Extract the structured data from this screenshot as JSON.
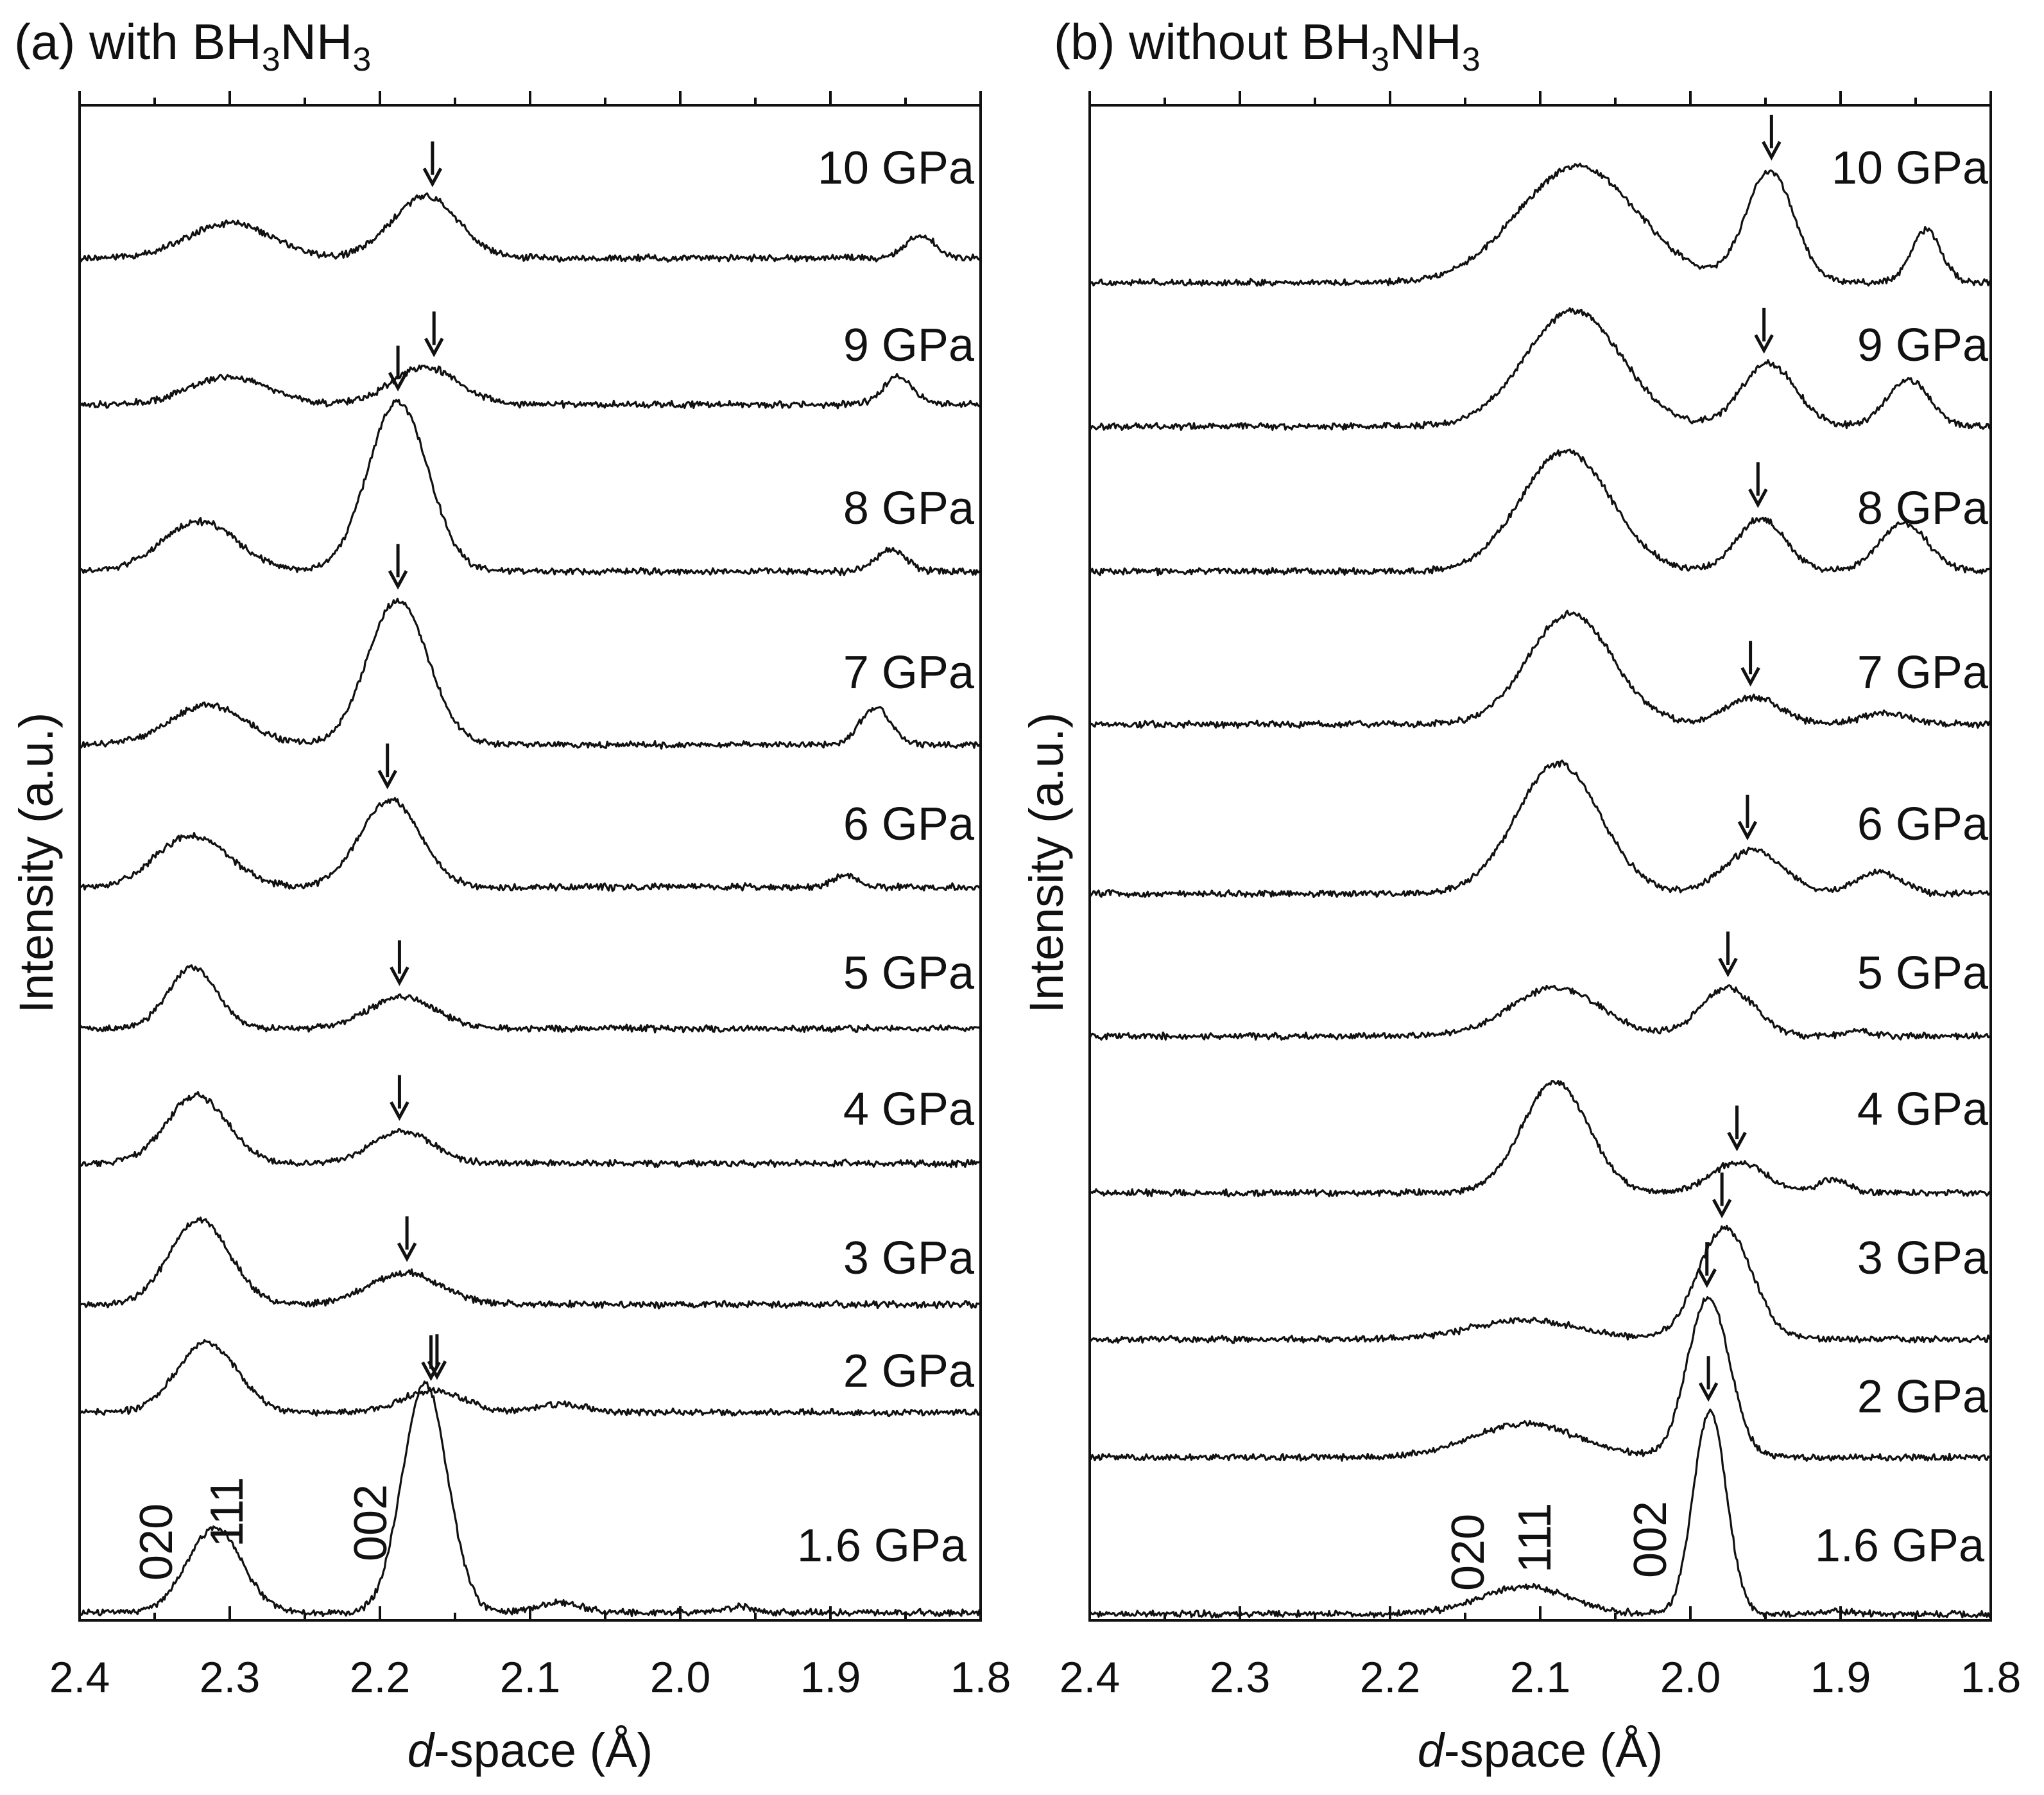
{
  "chart_data": [
    {
      "type": "line",
      "title_prefix": "(a) with BH",
      "title_sub1": "3",
      "title_mid": "NH",
      "title_sub2": "3",
      "xlabel_italic": "d",
      "xlabel_rest": "-space (Å)",
      "ylabel": "Intensity (a.u.)",
      "xlim": [
        2.4,
        1.8
      ],
      "xticks": [
        "2.4",
        "2.3",
        "2.2",
        "2.1",
        "2.0",
        "1.9",
        "1.8"
      ],
      "series": [
        {
          "name": "10 GPa",
          "peaks": [
            {
              "d": 2.3,
              "h": 0.35,
              "w": 0.028
            },
            {
              "d": 2.17,
              "h": 0.62,
              "w": 0.022
            },
            {
              "d": 1.84,
              "h": 0.22,
              "w": 0.01
            }
          ],
          "arrow_d": 2.165
        },
        {
          "name": "9 GPa",
          "peaks": [
            {
              "d": 2.3,
              "h": 0.28,
              "w": 0.026
            },
            {
              "d": 2.17,
              "h": 0.38,
              "w": 0.022
            },
            {
              "d": 1.855,
              "h": 0.28,
              "w": 0.01
            }
          ],
          "arrow_d": 2.164
        },
        {
          "name": "8 GPa",
          "peaks": [
            {
              "d": 2.32,
              "h": 0.5,
              "w": 0.025
            },
            {
              "d": 2.188,
              "h": 1.7,
              "w": 0.02
            },
            {
              "d": 1.86,
              "h": 0.22,
              "w": 0.01
            }
          ],
          "arrow_d": 2.188
        },
        {
          "name": "7 GPa",
          "peaks": [
            {
              "d": 2.315,
              "h": 0.4,
              "w": 0.025
            },
            {
              "d": 2.188,
              "h": 1.45,
              "w": 0.02
            },
            {
              "d": 1.87,
              "h": 0.38,
              "w": 0.01
            }
          ],
          "arrow_d": 2.188
        },
        {
          "name": "6 GPa",
          "peaks": [
            {
              "d": 2.325,
              "h": 0.52,
              "w": 0.024
            },
            {
              "d": 2.193,
              "h": 0.88,
              "w": 0.02
            },
            {
              "d": 1.89,
              "h": 0.12,
              "w": 0.008
            }
          ],
          "arrow_d": 2.195
        },
        {
          "name": "5 GPa",
          "peaks": [
            {
              "d": 2.325,
              "h": 0.62,
              "w": 0.016
            },
            {
              "d": 2.185,
              "h": 0.32,
              "w": 0.022
            }
          ],
          "arrow_d": 2.187
        },
        {
          "name": "4 GPa",
          "peaks": [
            {
              "d": 2.322,
              "h": 0.68,
              "w": 0.02
            },
            {
              "d": 2.185,
              "h": 0.32,
              "w": 0.02
            }
          ],
          "arrow_d": 2.187
        },
        {
          "name": "3 GPa",
          "peaks": [
            {
              "d": 2.32,
              "h": 0.85,
              "w": 0.02
            },
            {
              "d": 2.183,
              "h": 0.32,
              "w": 0.024
            }
          ],
          "arrow_d": 2.182
        },
        {
          "name": "2 GPa",
          "peaks": [
            {
              "d": 2.315,
              "h": 0.7,
              "w": 0.02
            },
            {
              "d": 2.165,
              "h": 0.22,
              "w": 0.02
            },
            {
              "d": 2.08,
              "h": 0.08,
              "w": 0.018
            }
          ],
          "arrow_d": 2.162
        },
        {
          "name": "1.6 GPa",
          "peaks": [
            {
              "d": 2.31,
              "h": 0.85,
              "w": 0.018
            },
            {
              "d": 2.17,
              "h": 2.3,
              "w": 0.015
            },
            {
              "d": 2.08,
              "h": 0.1,
              "w": 0.015
            },
            {
              "d": 1.96,
              "h": 0.06,
              "w": 0.01
            }
          ],
          "arrow_d": 2.166
        }
      ],
      "annotations": [
        "020",
        "111",
        "002"
      ]
    },
    {
      "type": "line",
      "title_prefix": "(b) without BH",
      "title_sub1": "3",
      "title_mid": "NH",
      "title_sub2": "3",
      "xlabel_italic": "d",
      "xlabel_rest": "-space (Å)",
      "ylabel": "Intensity (a.u.)",
      "xlim": [
        2.4,
        1.8
      ],
      "xticks": [
        "2.4",
        "2.3",
        "2.2",
        "2.1",
        "2.0",
        "1.9",
        "1.8"
      ],
      "series": [
        {
          "name": "10 GPa",
          "peaks": [
            {
              "d": 2.075,
              "h": 1.2,
              "w": 0.04
            },
            {
              "d": 1.947,
              "h": 1.15,
              "w": 0.016
            },
            {
              "d": 1.843,
              "h": 0.55,
              "w": 0.01
            }
          ],
          "arrow_d": 1.946
        },
        {
          "name": "9 GPa",
          "peaks": [
            {
              "d": 2.078,
              "h": 1.2,
              "w": 0.032
            },
            {
              "d": 1.948,
              "h": 0.65,
              "w": 0.018
            },
            {
              "d": 1.855,
              "h": 0.48,
              "w": 0.014
            }
          ],
          "arrow_d": 1.951
        },
        {
          "name": "8 GPa",
          "peaks": [
            {
              "d": 2.083,
              "h": 1.25,
              "w": 0.03
            },
            {
              "d": 1.953,
              "h": 0.55,
              "w": 0.016
            },
            {
              "d": 1.858,
              "h": 0.5,
              "w": 0.016
            }
          ],
          "arrow_d": 1.955
        },
        {
          "name": "7 GPa",
          "peaks": [
            {
              "d": 2.08,
              "h": 1.15,
              "w": 0.028
            },
            {
              "d": 1.958,
              "h": 0.28,
              "w": 0.018
            },
            {
              "d": 1.87,
              "h": 0.12,
              "w": 0.015
            }
          ],
          "arrow_d": 1.96
        },
        {
          "name": "6 GPa",
          "peaks": [
            {
              "d": 2.088,
              "h": 1.35,
              "w": 0.028
            },
            {
              "d": 1.958,
              "h": 0.45,
              "w": 0.02
            },
            {
              "d": 1.875,
              "h": 0.22,
              "w": 0.015
            }
          ],
          "arrow_d": 1.962
        },
        {
          "name": "5 GPa",
          "peaks": [
            {
              "d": 2.09,
              "h": 0.5,
              "w": 0.03
            },
            {
              "d": 1.975,
              "h": 0.5,
              "w": 0.018
            },
            {
              "d": 1.89,
              "h": 0.05,
              "w": 0.01
            }
          ],
          "arrow_d": 1.975
        },
        {
          "name": "4 GPa",
          "peaks": [
            {
              "d": 2.09,
              "h": 1.15,
              "w": 0.022
            },
            {
              "d": 1.968,
              "h": 0.32,
              "w": 0.018
            },
            {
              "d": 1.905,
              "h": 0.14,
              "w": 0.01
            }
          ],
          "arrow_d": 1.969
        },
        {
          "name": "3 GPa",
          "peaks": [
            {
              "d": 2.11,
              "h": 0.2,
              "w": 0.035
            },
            {
              "d": 1.977,
              "h": 1.15,
              "w": 0.018
            }
          ],
          "arrow_d": 1.979
        },
        {
          "name": "2 GPa",
          "peaks": [
            {
              "d": 2.11,
              "h": 0.35,
              "w": 0.035
            },
            {
              "d": 1.988,
              "h": 1.65,
              "w": 0.014
            }
          ],
          "arrow_d": 1.989
        },
        {
          "name": "1.6 GPa",
          "peaks": [
            {
              "d": 2.11,
              "h": 0.28,
              "w": 0.03
            },
            {
              "d": 1.987,
              "h": 2.1,
              "w": 0.011
            },
            {
              "d": 1.9,
              "h": 0.03,
              "w": 0.01
            }
          ],
          "arrow_d": 1.988
        }
      ],
      "annotations": [
        "020",
        "111",
        "002"
      ]
    }
  ]
}
